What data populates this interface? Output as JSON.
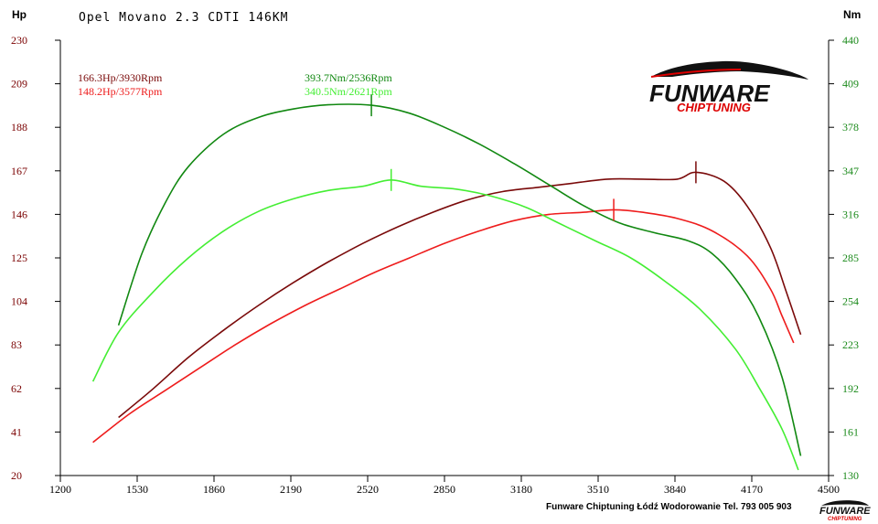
{
  "chart_data": {
    "type": "line",
    "title": "Opel Movano 2.3 CDTI 146KM",
    "xlabel": "",
    "ylabel_left": "Hp",
    "ylabel_right": "Nm",
    "xlim": [
      1200,
      4500
    ],
    "ylim_left": [
      20,
      230
    ],
    "ylim_right": [
      130,
      440
    ],
    "x_ticks": [
      1200,
      1530,
      1860,
      2190,
      2520,
      2850,
      3180,
      3510,
      3840,
      4170,
      4500
    ],
    "y_left_ticks": [
      20,
      41,
      62,
      83,
      104,
      125,
      146,
      167,
      188,
      209,
      230
    ],
    "y_right_ticks": [
      130,
      161,
      192,
      223,
      254,
      285,
      316,
      347,
      378,
      409,
      440
    ],
    "grid": false,
    "series": [
      {
        "axis": "left",
        "color": "#7a0a0a",
        "x": [
          1450,
          1600,
          1750,
          1900,
          2050,
          2200,
          2350,
          2500,
          2650,
          2800,
          2950,
          3100,
          3250,
          3400,
          3550,
          3700,
          3850,
          3930,
          4050,
          4150,
          4250,
          4320,
          4380
        ],
        "y": [
          48,
          62,
          77,
          90,
          102,
          113,
          123,
          132,
          140,
          147,
          153,
          157,
          159,
          161,
          163,
          163,
          163,
          166.3,
          162,
          150,
          130,
          108,
          88
        ]
      },
      {
        "axis": "left",
        "color": "#ee1c1c",
        "x": [
          1340,
          1500,
          1650,
          1800,
          1950,
          2100,
          2250,
          2400,
          2550,
          2700,
          2850,
          3000,
          3150,
          3300,
          3450,
          3577,
          3700,
          3850,
          4000,
          4150,
          4250,
          4300,
          4350
        ],
        "y": [
          36,
          50,
          61,
          72,
          83,
          93,
          102,
          110,
          118,
          125,
          132,
          138,
          143,
          146,
          147,
          148.2,
          147,
          144,
          138,
          126,
          110,
          97,
          84
        ]
      },
      {
        "axis": "right",
        "color": "#118811",
        "x": [
          1450,
          1550,
          1650,
          1750,
          1900,
          2050,
          2200,
          2350,
          2536,
          2700,
          2850,
          3000,
          3150,
          3300,
          3450,
          3600,
          3750,
          3900,
          4000,
          4100,
          4200,
          4300,
          4380
        ],
        "y": [
          237,
          288,
          324,
          350,
          373,
          385,
          391,
          394,
          393.7,
          388,
          378,
          366,
          352,
          337,
          322,
          310,
          303,
          297,
          288,
          270,
          243,
          200,
          144
        ]
      },
      {
        "axis": "right",
        "color": "#44ee33",
        "x": [
          1340,
          1450,
          1600,
          1750,
          1900,
          2050,
          2200,
          2350,
          2500,
          2621,
          2750,
          2900,
          3050,
          3200,
          3350,
          3500,
          3650,
          3800,
          3950,
          4100,
          4200,
          4300,
          4370
        ],
        "y": [
          197,
          232,
          261,
          285,
          304,
          318,
          327,
          333,
          336,
          340.5,
          336,
          334,
          329,
          321,
          309,
          297,
          285,
          268,
          248,
          220,
          193,
          163,
          134
        ]
      }
    ],
    "markers": [
      {
        "axis": "left",
        "x": 3930,
        "y": 166.3,
        "color": "#7a0a0a"
      },
      {
        "axis": "left",
        "x": 3577,
        "y": 148.2,
        "color": "#ee1c1c"
      },
      {
        "axis": "right",
        "x": 2536,
        "y": 393.7,
        "color": "#118811"
      },
      {
        "axis": "right",
        "x": 2621,
        "y": 340.5,
        "color": "#44ee33"
      }
    ],
    "annotations": [
      {
        "text": "166.3Hp/3930Rpm",
        "color": "#7a0a0a"
      },
      {
        "text": "148.2Hp/3577Rpm",
        "color": "#ee1c1c"
      },
      {
        "text": "393.7Nm/2536Rpm",
        "color": "#118811"
      },
      {
        "text": "340.5Nm/2621Rpm",
        "color": "#44ee33"
      }
    ]
  },
  "logo": {
    "brand": "FUNWARE",
    "sub": "CHIPTUNING"
  },
  "footer": {
    "text": "Funware Chiptuning Łódź Wodorowanie Tel. 793 005 903"
  }
}
